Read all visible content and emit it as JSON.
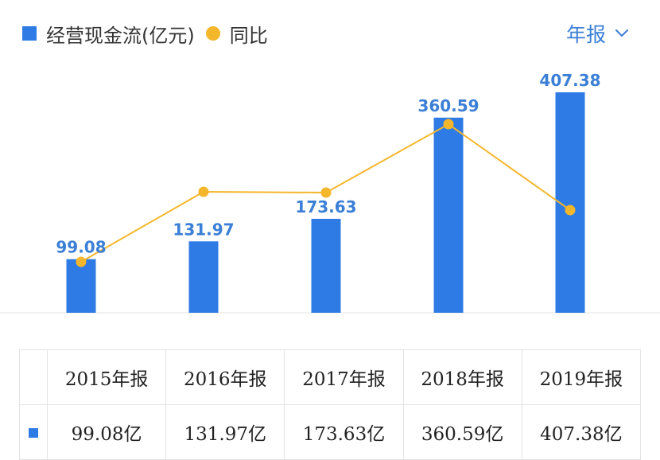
{
  "legend": {
    "bar_label": "经营现金流(亿元)",
    "line_label": "同比"
  },
  "period_selector": {
    "label": "年报",
    "icon": "chevron-down-icon"
  },
  "colors": {
    "bar": "#2f7be5",
    "line": "#f4b62b",
    "label": "#3b7fd6",
    "selector": "#3b7fd6",
    "axis": "#e3e3e3"
  },
  "chart_data": {
    "type": "bar",
    "categories": [
      "2015年报",
      "2016年报",
      "2017年报",
      "2018年报",
      "2019年报"
    ],
    "values": [
      99.08,
      131.97,
      173.63,
      360.59,
      407.38
    ],
    "value_labels": [
      "99.08",
      "131.97",
      "173.63",
      "360.59",
      "407.38"
    ],
    "ylim": [
      0,
      407.38
    ],
    "grid": false,
    "legend_position": "top-left",
    "series": [
      {
        "name": "经营现金流(亿元)",
        "type": "bar",
        "values": [
          99.08,
          131.97,
          173.63,
          360.59,
          407.38
        ]
      },
      {
        "name": "同比",
        "type": "line",
        "values": [
          null,
          null,
          null,
          null,
          null
        ]
      }
    ]
  },
  "table": {
    "headers": [
      "2015年报",
      "2016年报",
      "2017年报",
      "2018年报",
      "2019年报"
    ],
    "row": [
      "99.08亿",
      "131.97亿",
      "173.63亿",
      "360.59亿",
      "407.38亿"
    ]
  }
}
